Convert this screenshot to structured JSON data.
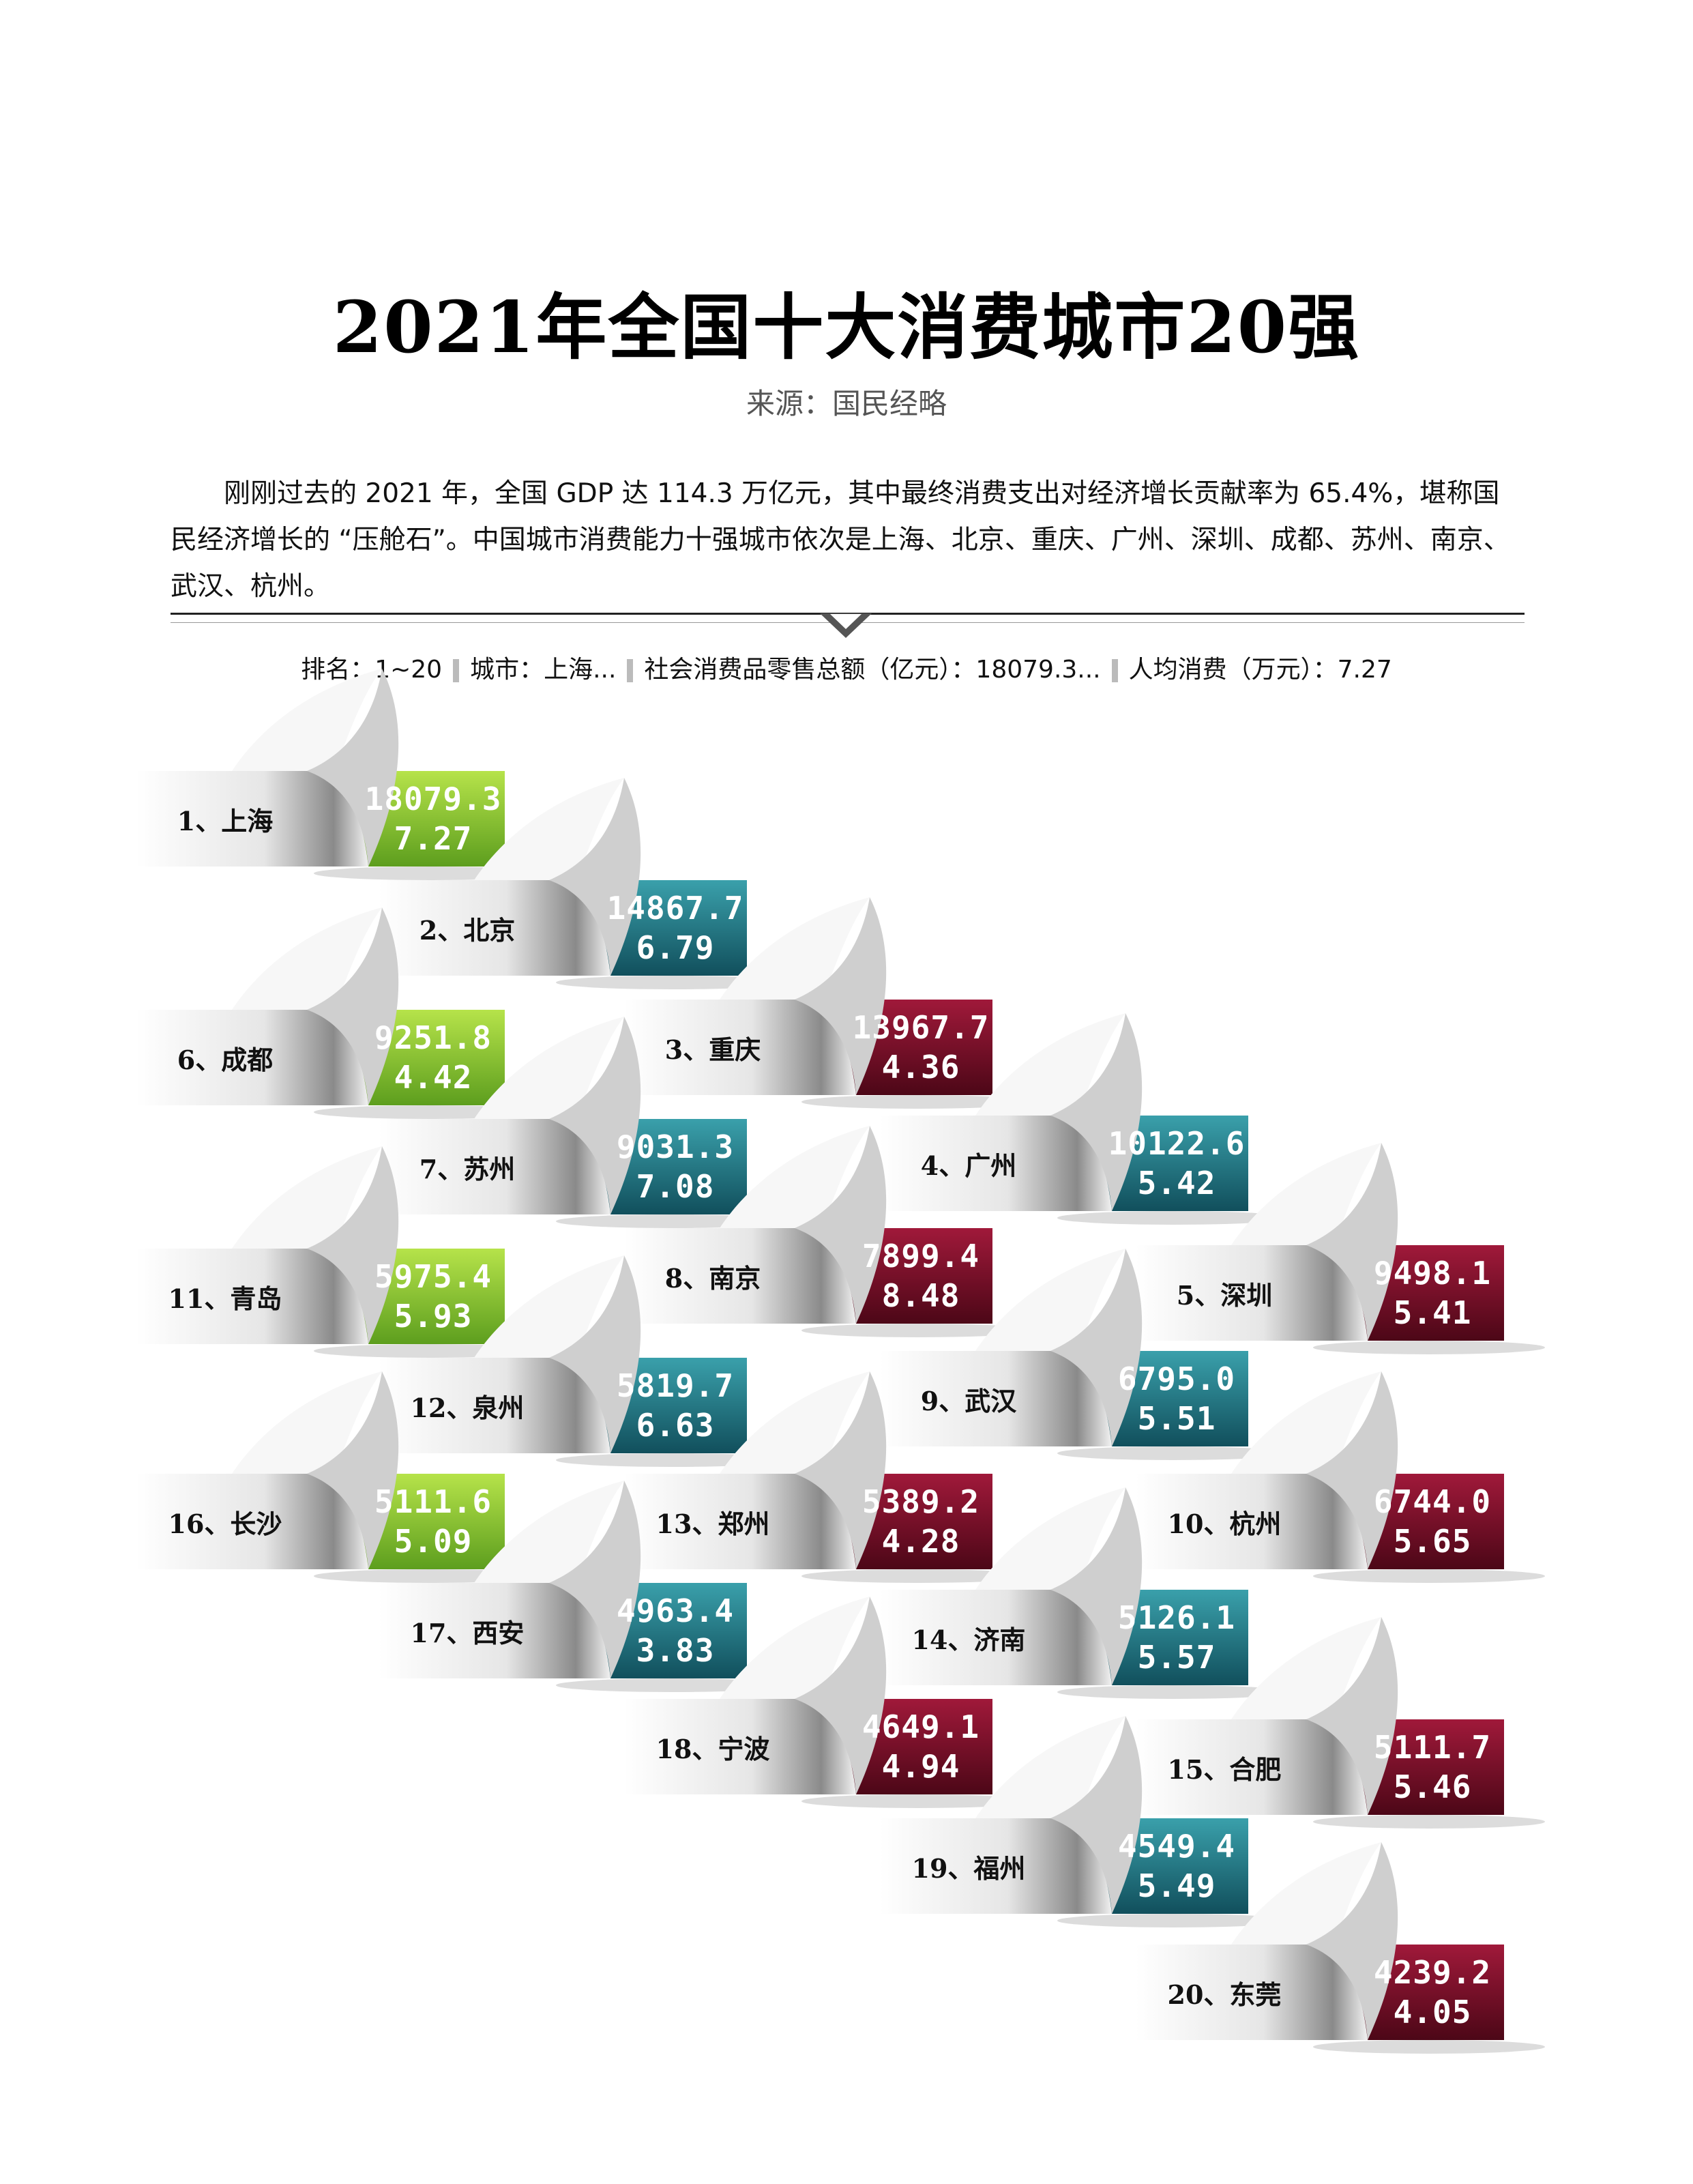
{
  "title": "2021年全国十大消费城市20强",
  "source": "来源：国民经略",
  "intro": "刚刚过去的 2021 年，全国 GDP 达 114.3 万亿元，其中最终消费支出对经济增长贡献率为 65.4%，堪称国民经济增长的 “压舱石”。中国城市消费能力十强城市依次是上海、北京、重庆、广州、深圳、成都、苏州、南京、武汉、杭州。",
  "legend": {
    "rank": "排名：1~20",
    "city": "城市：上海...",
    "retail": "社会消费品零售总额（亿元）：18079.3...",
    "per_capita": "人均消费（万元）：7.27"
  },
  "colors": {
    "green": "#8dc63f",
    "teal": "#1f7f8c",
    "red": "#7a1128"
  },
  "chart_data": {
    "type": "table",
    "columns": [
      "排名",
      "城市",
      "社会消费品零售总额（亿元）",
      "人均消费（万元）"
    ],
    "rows": [
      {
        "label": "1、上海",
        "rank": 1,
        "city": "上海",
        "retail": "18079.3",
        "per_capita": "7.27",
        "color": "green"
      },
      {
        "label": "2、北京",
        "rank": 2,
        "city": "北京",
        "retail": "14867.7",
        "per_capita": "6.79",
        "color": "teal"
      },
      {
        "label": "3、重庆",
        "rank": 3,
        "city": "重庆",
        "retail": "13967.7",
        "per_capita": "4.36",
        "color": "red"
      },
      {
        "label": "4、广州",
        "rank": 4,
        "city": "广州",
        "retail": "10122.6",
        "per_capita": "5.42",
        "color": "teal"
      },
      {
        "label": "5、深圳",
        "rank": 5,
        "city": "深圳",
        "retail": "9498.1",
        "per_capita": "5.41",
        "color": "red"
      },
      {
        "label": "6、成都",
        "rank": 6,
        "city": "成都",
        "retail": "9251.8",
        "per_capita": "4.42",
        "color": "green"
      },
      {
        "label": "7、苏州",
        "rank": 7,
        "city": "苏州",
        "retail": "9031.3",
        "per_capita": "7.08",
        "color": "teal"
      },
      {
        "label": "8、南京",
        "rank": 8,
        "city": "南京",
        "retail": "7899.4",
        "per_capita": "8.48",
        "color": "red"
      },
      {
        "label": "9、武汉",
        "rank": 9,
        "city": "武汉",
        "retail": "6795.0",
        "per_capita": "5.51",
        "color": "teal"
      },
      {
        "label": "10、杭州",
        "rank": 10,
        "city": "杭州",
        "retail": "6744.0",
        "per_capita": "5.65",
        "color": "red"
      },
      {
        "label": "11、青岛",
        "rank": 11,
        "city": "青岛",
        "retail": "5975.4",
        "per_capita": "5.93",
        "color": "green"
      },
      {
        "label": "12、泉州",
        "rank": 12,
        "city": "泉州",
        "retail": "5819.7",
        "per_capita": "6.63",
        "color": "teal"
      },
      {
        "label": "13、郑州",
        "rank": 13,
        "city": "郑州",
        "retail": "5389.2",
        "per_capita": "4.28",
        "color": "red"
      },
      {
        "label": "14、济南",
        "rank": 14,
        "city": "济南",
        "retail": "5126.1",
        "per_capita": "5.57",
        "color": "teal"
      },
      {
        "label": "15、合肥",
        "rank": 15,
        "city": "合肥",
        "retail": "5111.7",
        "per_capita": "5.46",
        "color": "red"
      },
      {
        "label": "16、长沙",
        "rank": 16,
        "city": "长沙",
        "retail": "5111.6",
        "per_capita": "5.09",
        "color": "green"
      },
      {
        "label": "17、西安",
        "rank": 17,
        "city": "西安",
        "retail": "4963.4",
        "per_capita": "3.83",
        "color": "teal"
      },
      {
        "label": "18、宁波",
        "rank": 18,
        "city": "宁波",
        "retail": "4649.1",
        "per_capita": "4.94",
        "color": "red"
      },
      {
        "label": "19、福州",
        "rank": 19,
        "city": "福州",
        "retail": "4549.4",
        "per_capita": "5.49",
        "color": "teal"
      },
      {
        "label": "20、东莞",
        "rank": 20,
        "city": "东莞",
        "retail": "4239.2",
        "per_capita": "4.05",
        "color": "red"
      }
    ]
  }
}
